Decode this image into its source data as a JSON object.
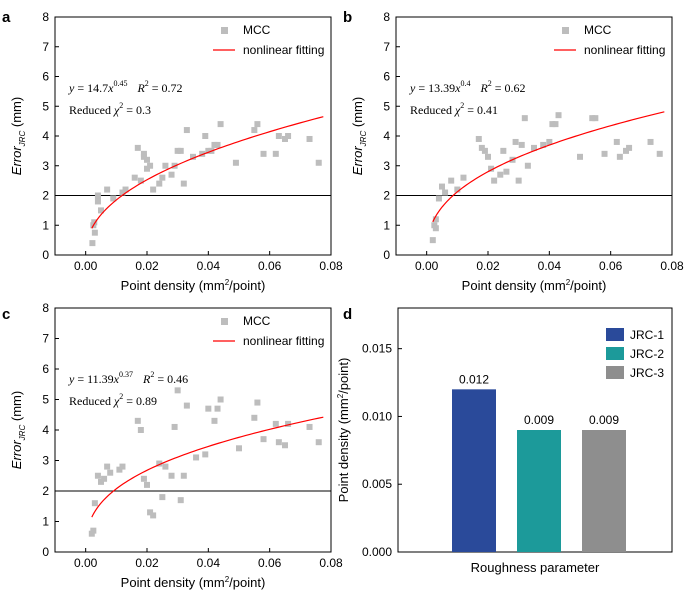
{
  "panels": [
    {
      "label": "a",
      "xlabel_parts": [
        "Point density (mm",
        "2",
        "/point)"
      ],
      "ylabel_parts": [
        "Error",
        "JRC",
        " (mm)"
      ],
      "legend": {
        "points": "MCC",
        "line": "nonlinear fitting"
      },
      "equation": {
        "a": "14.7",
        "b": "0.45",
        "r2": "0.72",
        "chi2": "0.3"
      },
      "equation_text": {
        "y_pre": "y = ",
        "x": "x",
        "r2_pre": "R",
        "r2_sup": "2",
        "r2_eq": " = ",
        "chi_pre": "Reduced ",
        "chi": "χ",
        "chi_sup": "2",
        "chi_eq": " = "
      }
    },
    {
      "label": "b",
      "xlabel_parts": [
        "Point density (mm",
        "2",
        "/point)"
      ],
      "ylabel_parts": [
        "Error",
        "JRC",
        " (mm)"
      ],
      "legend": {
        "points": "MCC",
        "line": "nonlinear fitting"
      },
      "equation": {
        "a": "13.39",
        "b": "0.4",
        "r2": "0.62",
        "chi2": "0.41"
      },
      "equation_text": {
        "y_pre": "y = ",
        "x": "x",
        "r2_pre": "R",
        "r2_sup": "2",
        "r2_eq": " = ",
        "chi_pre": "Reduced ",
        "chi": "χ",
        "chi_sup": "2",
        "chi_eq": " = "
      }
    },
    {
      "label": "c",
      "xlabel_parts": [
        "Point density (mm",
        "2",
        "/point)"
      ],
      "ylabel_parts": [
        "Error",
        "JRC",
        " (mm)"
      ],
      "legend": {
        "points": "MCC",
        "line": "nonlinear fitting"
      },
      "equation": {
        "a": "11.39",
        "b": "0.37",
        "r2": "0.46",
        "chi2": "0.89"
      },
      "equation_text": {
        "y_pre": "y = ",
        "x": "x",
        "r2_pre": "R",
        "r2_sup": "2",
        "r2_eq": " = ",
        "chi_pre": "Reduced ",
        "chi": "χ",
        "chi_sup": "2",
        "chi_eq": " = "
      }
    },
    {
      "label": "d",
      "xlabel": "Roughness parameter",
      "ylabel_parts": [
        "Point density (mm",
        "2",
        "/point)"
      ]
    }
  ],
  "chart_data": [
    {
      "type": "scatter",
      "panel": "a",
      "xlim": [
        -0.01,
        0.08
      ],
      "ylim": [
        0,
        8
      ],
      "xticks": [
        "0.00",
        "0.02",
        "0.04",
        "0.06",
        "0.08"
      ],
      "yticks": [
        "0",
        "1",
        "2",
        "3",
        "4",
        "5",
        "6",
        "7",
        "8"
      ],
      "reference_line_y": 2,
      "grid": false,
      "legend_position": "top-right",
      "series": [
        {
          "name": "MCC",
          "color": "#bdbdbd",
          "x": [
            0.0022,
            0.0025,
            0.003,
            0.0028,
            0.004,
            0.004,
            0.005,
            0.007,
            0.009,
            0.012,
            0.013,
            0.016,
            0.017,
            0.018,
            0.019,
            0.019,
            0.02,
            0.02,
            0.021,
            0.022,
            0.024,
            0.025,
            0.026,
            0.028,
            0.029,
            0.03,
            0.031,
            0.032,
            0.033,
            0.035,
            0.038,
            0.039,
            0.04,
            0.041,
            0.042,
            0.043,
            0.044,
            0.049,
            0.055,
            0.056,
            0.058,
            0.062,
            0.063,
            0.065,
            0.066,
            0.073,
            0.076
          ],
          "y": [
            0.4,
            1.0,
            0.75,
            1.1,
            2.0,
            1.8,
            1.5,
            2.2,
            1.9,
            2.1,
            2.2,
            2.6,
            3.6,
            2.5,
            3.4,
            3.3,
            2.9,
            3.2,
            3.0,
            2.2,
            2.4,
            2.6,
            3.0,
            2.7,
            3.0,
            3.5,
            3.5,
            2.4,
            4.2,
            3.3,
            3.4,
            4.0,
            3.5,
            3.5,
            3.7,
            3.7,
            4.4,
            3.1,
            4.2,
            4.4,
            3.4,
            3.4,
            4.0,
            3.9,
            4.0,
            3.9,
            3.1
          ]
        },
        {
          "name": "nonlinear fitting",
          "color": "#ff0000",
          "a": 14.7,
          "b": 0.45,
          "x_start": 0.002,
          "x_end": 0.0775
        }
      ]
    },
    {
      "type": "scatter",
      "panel": "b",
      "xlim": [
        -0.01,
        0.08
      ],
      "ylim": [
        0,
        8
      ],
      "xticks": [
        "0.00",
        "0.02",
        "0.04",
        "0.06",
        "0.08"
      ],
      "yticks": [
        "0",
        "1",
        "2",
        "3",
        "4",
        "5",
        "6",
        "7",
        "8"
      ],
      "reference_line_y": 2,
      "grid": false,
      "legend_position": "top-right",
      "series": [
        {
          "name": "MCC",
          "color": "#bdbdbd",
          "x": [
            0.002,
            0.0025,
            0.003,
            0.003,
            0.004,
            0.005,
            0.006,
            0.008,
            0.01,
            0.012,
            0.017,
            0.018,
            0.019,
            0.02,
            0.021,
            0.022,
            0.024,
            0.025,
            0.026,
            0.028,
            0.029,
            0.03,
            0.031,
            0.032,
            0.033,
            0.035,
            0.038,
            0.04,
            0.041,
            0.042,
            0.043,
            0.05,
            0.054,
            0.055,
            0.058,
            0.062,
            0.063,
            0.065,
            0.066,
            0.073,
            0.076
          ],
          "y": [
            0.5,
            1.0,
            1.2,
            0.9,
            1.9,
            2.3,
            2.1,
            2.5,
            2.2,
            2.6,
            3.9,
            3.6,
            3.5,
            3.3,
            2.9,
            2.5,
            2.7,
            3.5,
            2.8,
            3.2,
            3.8,
            2.5,
            3.7,
            4.6,
            3.0,
            3.6,
            3.7,
            3.8,
            4.4,
            4.4,
            4.7,
            3.3,
            4.6,
            4.6,
            3.4,
            3.8,
            3.3,
            3.5,
            3.6,
            3.8,
            3.4
          ]
        },
        {
          "name": "nonlinear fitting",
          "color": "#ff0000",
          "a": 13.39,
          "b": 0.4,
          "x_start": 0.002,
          "x_end": 0.0775
        }
      ]
    },
    {
      "type": "scatter",
      "panel": "c",
      "xlim": [
        -0.01,
        0.08
      ],
      "ylim": [
        0,
        8
      ],
      "xticks": [
        "0.00",
        "0.02",
        "0.04",
        "0.06",
        "0.08"
      ],
      "yticks": [
        "0",
        "1",
        "2",
        "3",
        "4",
        "5",
        "6",
        "7",
        "8"
      ],
      "reference_line_y": 2,
      "grid": false,
      "legend_position": "top-right",
      "series": [
        {
          "name": "MCC",
          "color": "#bdbdbd",
          "x": [
            0.002,
            0.0025,
            0.003,
            0.004,
            0.005,
            0.006,
            0.007,
            0.008,
            0.011,
            0.012,
            0.017,
            0.018,
            0.019,
            0.02,
            0.021,
            0.022,
            0.024,
            0.025,
            0.026,
            0.028,
            0.029,
            0.03,
            0.031,
            0.032,
            0.033,
            0.036,
            0.039,
            0.04,
            0.042,
            0.043,
            0.044,
            0.05,
            0.055,
            0.056,
            0.058,
            0.062,
            0.063,
            0.065,
            0.066,
            0.073,
            0.076
          ],
          "y": [
            0.6,
            0.7,
            1.6,
            2.5,
            2.3,
            2.4,
            2.8,
            2.6,
            2.7,
            2.8,
            4.3,
            4.0,
            2.4,
            2.2,
            1.3,
            1.2,
            2.9,
            1.8,
            2.8,
            2.5,
            4.1,
            5.3,
            1.7,
            2.5,
            4.8,
            3.1,
            3.2,
            4.7,
            4.3,
            4.7,
            5.0,
            3.4,
            4.4,
            4.9,
            3.7,
            4.2,
            3.6,
            3.5,
            4.2,
            4.1,
            3.6
          ]
        },
        {
          "name": "nonlinear fitting",
          "color": "#ff0000",
          "a": 11.39,
          "b": 0.37,
          "x_start": 0.002,
          "x_end": 0.0775
        }
      ]
    },
    {
      "type": "bar",
      "panel": "d",
      "categories": [
        "JRC-1",
        "JRC-2",
        "JRC-3"
      ],
      "values": [
        0.012,
        0.009,
        0.009
      ],
      "value_labels": [
        "0.012",
        "0.009",
        "0.009"
      ],
      "colors": [
        "#2a4a9a",
        "#1c9a9a",
        "#8e8e8e"
      ],
      "ylim": [
        0,
        0.018
      ],
      "yticks": [
        "0.000",
        "0.005",
        "0.010",
        "0.015"
      ],
      "xlabel": "Roughness parameter",
      "legend_position": "top-right",
      "grid": false
    }
  ]
}
